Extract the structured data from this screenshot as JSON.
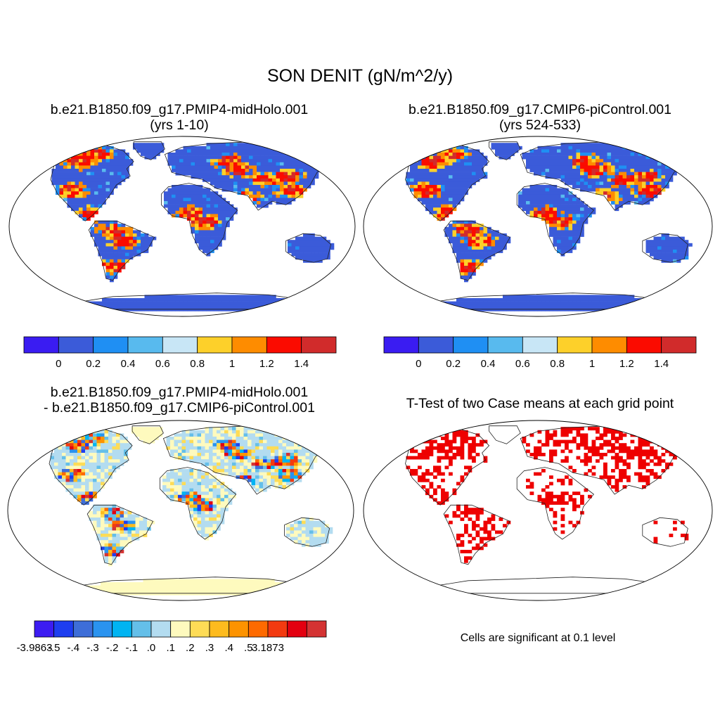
{
  "title": "SON DENIT (gN/m^2/y)",
  "chart_data": [
    {
      "type": "heatmap",
      "panel": "top-left",
      "title_line1": "b.e21.B1850.f09_g17.PMIP4-midHolo.001",
      "title_line2": "(yrs 1-10)",
      "colorbar": {
        "colors": [
          "#3a1cf2",
          "#3b5bd9",
          "#1f8ff3",
          "#58baee",
          "#c8e6f6",
          "#fdd02a",
          "#fe8c00",
          "#fb0b00",
          "#d12b2b"
        ],
        "tick_labels": [
          "0",
          "0.2",
          "0.4",
          "0.6",
          "0.8",
          "1",
          "1.2",
          "1.4"
        ]
      }
    },
    {
      "type": "heatmap",
      "panel": "top-right",
      "title_line1": "b.e21.B1850.f09_g17.CMIP6-piControl.001",
      "title_line2": "(yrs 524-533)",
      "colorbar": {
        "colors": [
          "#3a1cf2",
          "#3b5bd9",
          "#1f8ff3",
          "#58baee",
          "#c8e6f6",
          "#fdd02a",
          "#fe8c00",
          "#fb0b00",
          "#d12b2b"
        ],
        "tick_labels": [
          "0",
          "0.2",
          "0.4",
          "0.6",
          "0.8",
          "1",
          "1.2",
          "1.4"
        ]
      }
    },
    {
      "type": "heatmap",
      "panel": "bottom-left",
      "title_line1": "b.e21.B1850.f09_g17.PMIP4-midHolo.001",
      "title_line2": "- b.e21.B1850.f09_g17.CMIP6-piControl.001",
      "colorbar": {
        "colors": [
          "#3c1cf2",
          "#1e3ef0",
          "#3e6ed8",
          "#2a93ef",
          "#00b4f2",
          "#64bfe9",
          "#b3dcf0",
          "#fefabe",
          "#fedc56",
          "#fdbb1e",
          "#fd9300",
          "#fe6a00",
          "#f33a10",
          "#e30010",
          "#d43333"
        ],
        "tick_labels": [
          "-3.9863",
          "-.5",
          "-.4",
          "-.3",
          "-.2",
          "-.1",
          ".0",
          ".1",
          ".2",
          ".3",
          ".4",
          ".5",
          "3.1873"
        ]
      }
    },
    {
      "type": "heatmap",
      "panel": "bottom-right",
      "title_line1": "T-Test of two Case means at each grid point",
      "significance_color": "#ee0000",
      "note": "Cells are significant at 0.1 level"
    }
  ]
}
